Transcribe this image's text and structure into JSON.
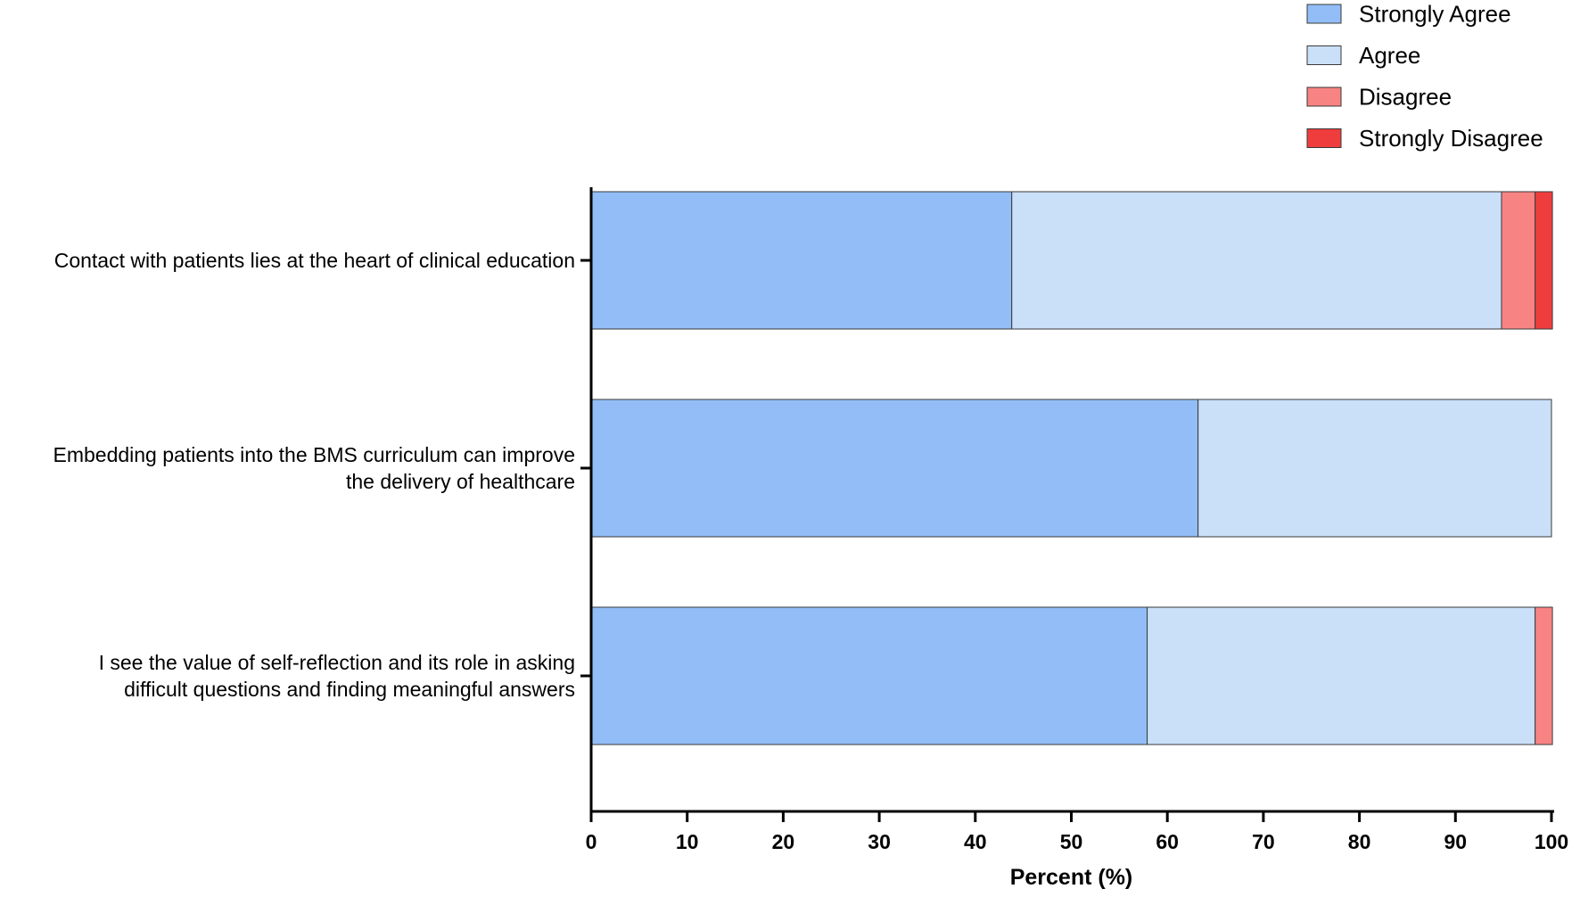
{
  "chart_data": {
    "type": "bar",
    "orientation": "horizontal",
    "stacked": true,
    "categories": [
      [
        "Contact with patients lies at the heart of clinical education"
      ],
      [
        "Embedding patients into the BMS curriculum can improve",
        "the delivery of healthcare"
      ],
      [
        "I see the value of self-reflection and its role in asking",
        "difficult questions and finding meaningful answers"
      ]
    ],
    "series": [
      {
        "name": "Strongly Agree",
        "color": "#92bdf7",
        "values": [
          43.8,
          63.2,
          57.9
        ]
      },
      {
        "name": "Agree",
        "color": "#cadff8",
        "values": [
          51.0,
          36.8,
          40.4
        ]
      },
      {
        "name": "Disagree",
        "color": "#f88383",
        "values": [
          3.5,
          0,
          1.8
        ]
      },
      {
        "name": "Strongly Disagree",
        "color": "#ef3d3d",
        "values": [
          1.8,
          0,
          0
        ]
      }
    ],
    "xlabel": "Percent (%)",
    "xlim": [
      0,
      100
    ],
    "xticks": [
      0,
      10,
      20,
      30,
      40,
      50,
      60,
      70,
      80,
      90,
      100
    ],
    "legend_position": "top-right",
    "grid": false
  }
}
